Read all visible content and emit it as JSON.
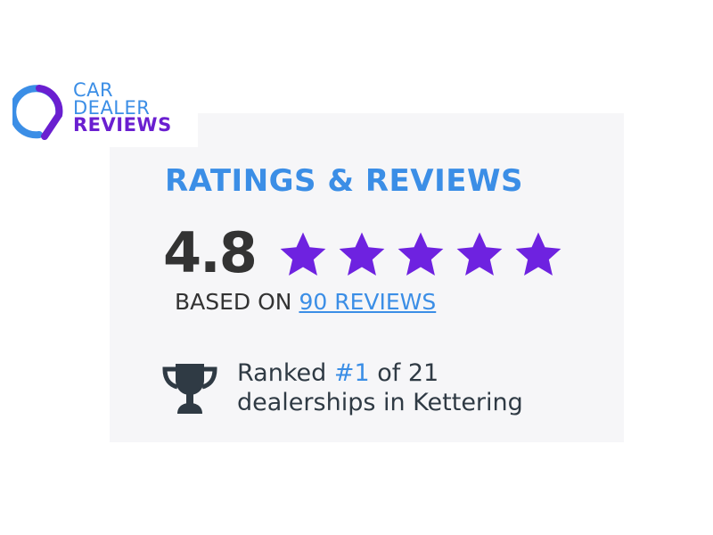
{
  "logo": {
    "line1": "CAR",
    "line2": "DEALER",
    "line3": "REVIEWS"
  },
  "widget": {
    "title": "RATINGS & REVIEWS",
    "score": "4.8",
    "rating": 4.8,
    "max_rating": 5,
    "based_on": "BASED ON",
    "reviews_link": "90 REVIEWS",
    "rank_prefix": "Ranked",
    "rank": "#1",
    "rank_suffix": "of 21",
    "rank_line2": "dealerships in Kettering"
  },
  "colors": {
    "accent": "#3b8ee6",
    "star": "#6e22e0",
    "text": "#333333",
    "card_bg": "#f6f6f8"
  },
  "icons": [
    "trophy-icon",
    "star-icon"
  ]
}
